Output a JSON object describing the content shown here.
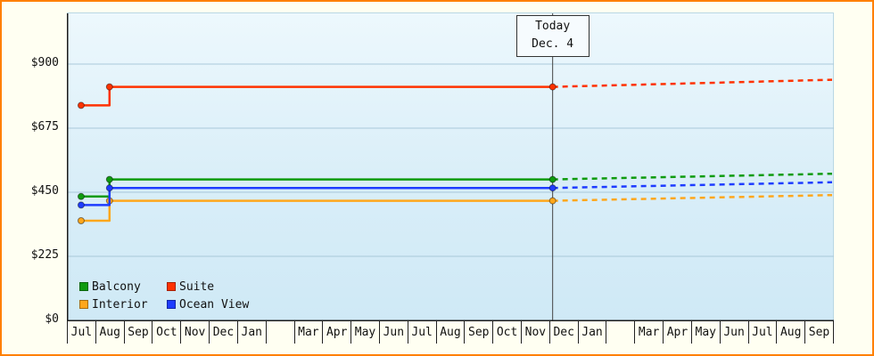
{
  "colors": {
    "background": "#fffff2",
    "frame_border": "#ff8000",
    "axis": "#1a1a1a",
    "grid": "#a9c9da",
    "today_line": "#444444",
    "balcony": "#0f9b0f",
    "suite": "#ff3200",
    "interior": "#ffa71c",
    "ocean_view": "#1e3cff"
  },
  "chart_data": {
    "type": "line",
    "subtype": "step-price-history-with-dashed-forecast",
    "grid": true,
    "ylim": [
      0,
      900
    ],
    "y_ticks": [
      {
        "value": 0,
        "label": "$0"
      },
      {
        "value": 225,
        "label": "$225"
      },
      {
        "value": 450,
        "label": "$450"
      },
      {
        "value": 675,
        "label": "$675"
      },
      {
        "value": 900,
        "label": "$900"
      }
    ],
    "months": [
      "Jul",
      "Aug",
      "Sep",
      "Oct",
      "Nov",
      "Dec",
      "Jan",
      "",
      "Mar",
      "Apr",
      "May",
      "Jun",
      "Jul",
      "Aug",
      "Sep",
      "Oct",
      "Nov",
      "Dec",
      "Jan",
      "",
      "Mar",
      "Apr",
      "May",
      "Jun",
      "Jul",
      "Aug",
      "Sep"
    ],
    "today": {
      "title": "Today",
      "date": "Dec. 4",
      "month_index": 17,
      "day_fraction": 0.1
    },
    "series": [
      {
        "name": "Balcony",
        "color": "#0f9b0f",
        "start_month_index": 0,
        "start_value": 435,
        "jump_month_index": 1,
        "current_value": 495,
        "forecast_end_value": 515
      },
      {
        "name": "Suite",
        "color": "#ff3200",
        "start_month_index": 0,
        "start_value": 755,
        "jump_month_index": 1,
        "current_value": 820,
        "forecast_end_value": 845
      },
      {
        "name": "Interior",
        "color": "#ffa71c",
        "start_month_index": 0,
        "start_value": 350,
        "jump_month_index": 1,
        "current_value": 420,
        "forecast_end_value": 440
      },
      {
        "name": "Ocean View",
        "color": "#1e3cff",
        "start_month_index": 0,
        "start_value": 405,
        "jump_month_index": 1,
        "current_value": 465,
        "forecast_end_value": 485
      }
    ],
    "legend": {
      "position": "bottom-left",
      "order": [
        "Balcony",
        "Suite",
        "Interior",
        "Ocean View"
      ]
    }
  }
}
